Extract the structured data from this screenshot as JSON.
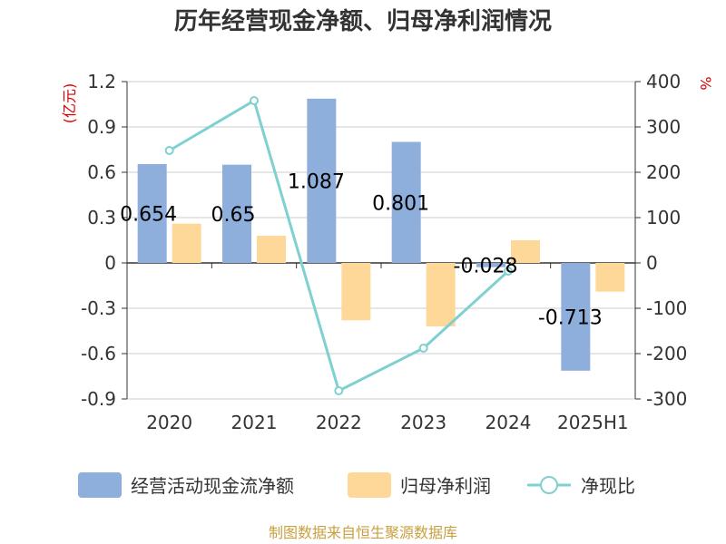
{
  "chart_data": {
    "type": "bar",
    "title": "历年经营现金净额、归母净利润情况",
    "categories": [
      "2020",
      "2021",
      "2022",
      "2023",
      "2024",
      "2025H1"
    ],
    "series": [
      {
        "name": "经营活动现金流净额",
        "kind": "bar",
        "axis": "left",
        "values": [
          0.654,
          0.65,
          1.087,
          0.801,
          -0.028,
          -0.713
        ],
        "labels": [
          "0.654",
          "0.65",
          "1.087",
          "0.801",
          "-0.028",
          "-0.713"
        ],
        "color": "#8eaedb"
      },
      {
        "name": "归母净利润",
        "kind": "bar",
        "axis": "left",
        "values": [
          0.26,
          0.18,
          -0.38,
          -0.42,
          0.15,
          -0.19
        ],
        "color": "#fdd898"
      },
      {
        "name": "净现比",
        "kind": "line",
        "axis": "right",
        "values": [
          248,
          358,
          -282,
          -188,
          -18,
          null
        ],
        "color": "#7fd0d0"
      }
    ],
    "left_axis": {
      "unit": "(亿元)",
      "ylim": [
        -0.9,
        1.2
      ],
      "ticks": [
        "1.2",
        "0.9",
        "0.6",
        "0.3",
        "0",
        "-0.3",
        "-0.6",
        "-0.9"
      ],
      "tick_values": [
        1.2,
        0.9,
        0.6,
        0.3,
        0,
        -0.3,
        -0.6,
        -0.9
      ]
    },
    "right_axis": {
      "unit": "%",
      "ylim": [
        -300,
        400
      ],
      "ticks": [
        "400",
        "300",
        "200",
        "100",
        "0",
        "-100",
        "-200",
        "-300"
      ],
      "tick_values": [
        400,
        300,
        200,
        100,
        0,
        -100,
        -200,
        -300
      ]
    },
    "grid": true,
    "legend_position": "bottom"
  },
  "source": "制图数据来自恒生聚源数据库",
  "colors": {
    "unit": "#d40000",
    "source": "#c8a040",
    "grid": "#cccccc",
    "axis": "#333333"
  }
}
